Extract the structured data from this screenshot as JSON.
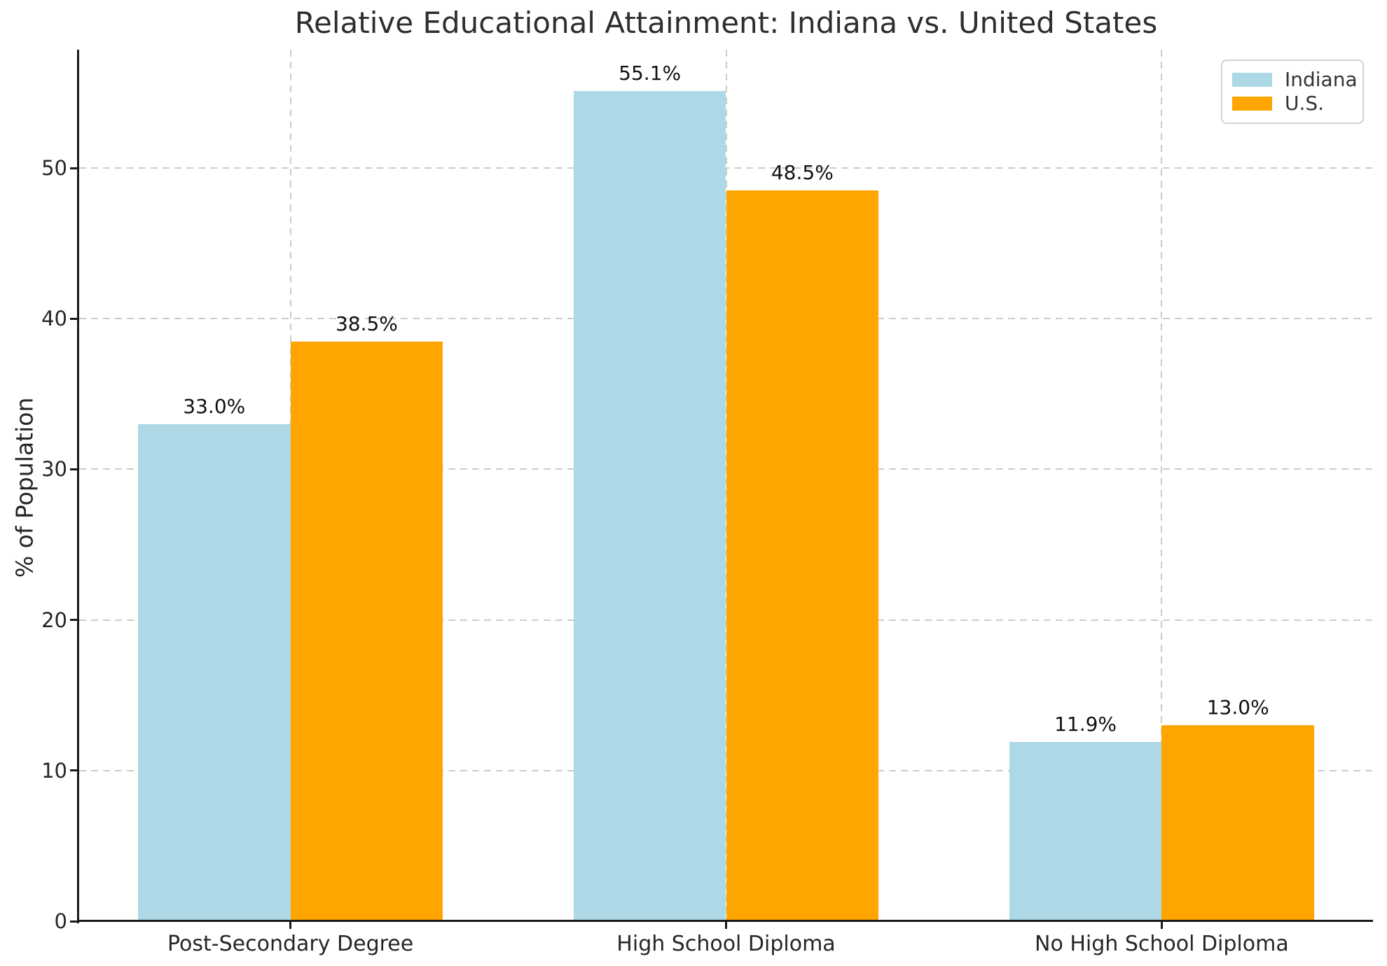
{
  "title": "Relative Educational Attainment: Indiana vs. United States",
  "chart_data": {
    "type": "bar",
    "title": "Relative Educational Attainment: Indiana vs. United States",
    "categories": [
      "Post-Secondary Degree",
      "High School Diploma",
      "No High School Diploma"
    ],
    "series": [
      {
        "name": "Indiana",
        "color": "#ADD8E6",
        "values": [
          33.0,
          55.1,
          11.9
        ],
        "value_labels": [
          "33.0%",
          "55.1%",
          "11.9%"
        ]
      },
      {
        "name": "U.S.",
        "color": "#FFA500",
        "values": [
          38.5,
          48.5,
          13.0
        ],
        "value_labels": [
          "38.5%",
          "48.5%",
          "13.0%"
        ]
      }
    ],
    "xlabel": "",
    "ylabel": "% of Population",
    "yticks": [
      0,
      10,
      20,
      30,
      40,
      50
    ],
    "ylim": [
      0,
      57.86
    ],
    "grid": {
      "style": "dashed",
      "color": "#cccccc",
      "horizontal": true,
      "vertical": true,
      "axisbelow": true
    },
    "legend": {
      "position": "upper right",
      "entries": [
        "Indiana",
        "U.S."
      ]
    }
  }
}
